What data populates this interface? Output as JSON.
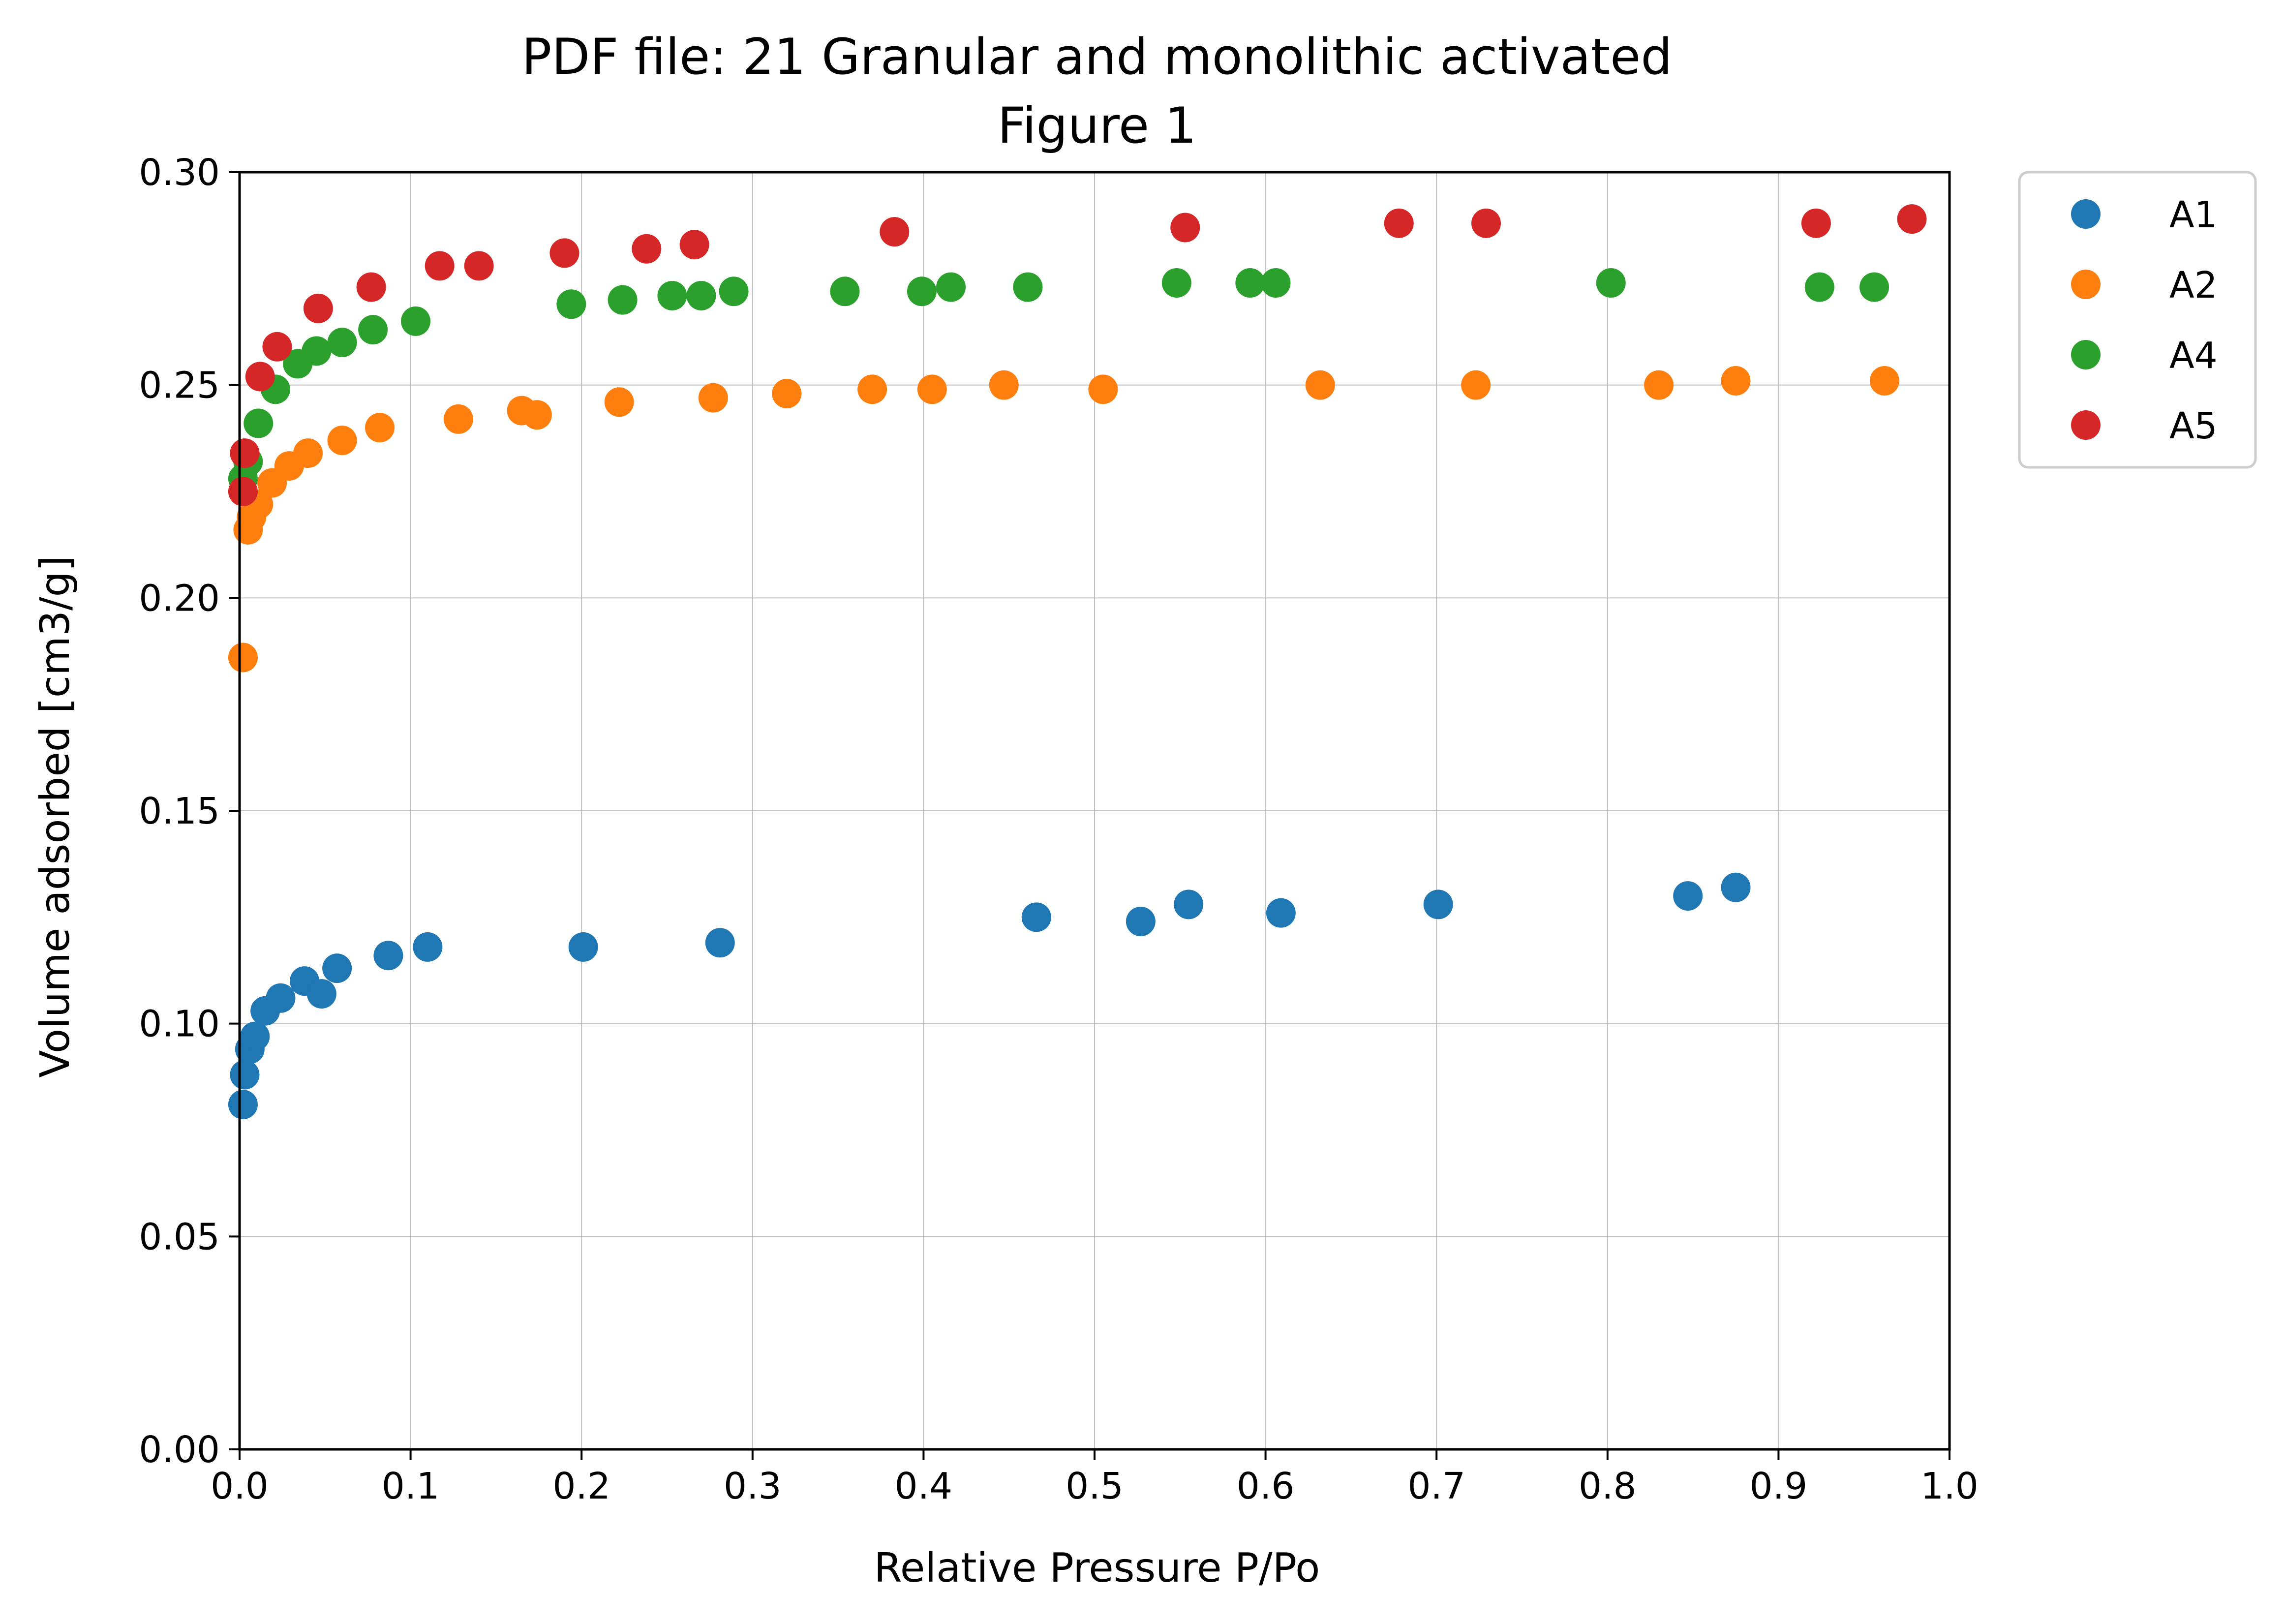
{
  "chart_data": {
    "type": "scatter",
    "title": "PDF file: 21 Granular and monolithic activated",
    "subtitle": "Figure 1",
    "xlabel": "Relative Pressure P/Po",
    "ylabel": "Volume adsorbed [cm3/g]",
    "xlim": [
      0,
      1.0
    ],
    "ylim": [
      0,
      0.3
    ],
    "x_ticks": [
      "0.0",
      "0.1",
      "0.2",
      "0.3",
      "0.4",
      "0.5",
      "0.6",
      "0.7",
      "0.8",
      "0.9",
      "1.0"
    ],
    "y_ticks": [
      "0.00",
      "0.05",
      "0.10",
      "0.15",
      "0.20",
      "0.25",
      "0.30"
    ],
    "grid": true,
    "legend_position": "outside-top-right",
    "series": [
      {
        "name": "A1",
        "color": "#1f77b4",
        "points": [
          [
            0.002,
            0.081
          ],
          [
            0.003,
            0.088
          ],
          [
            0.006,
            0.094
          ],
          [
            0.009,
            0.097
          ],
          [
            0.015,
            0.103
          ],
          [
            0.024,
            0.106
          ],
          [
            0.038,
            0.11
          ],
          [
            0.048,
            0.107
          ],
          [
            0.057,
            0.113
          ],
          [
            0.087,
            0.116
          ],
          [
            0.11,
            0.118
          ],
          [
            0.201,
            0.118
          ],
          [
            0.281,
            0.119
          ],
          [
            0.466,
            0.125
          ],
          [
            0.527,
            0.124
          ],
          [
            0.555,
            0.128
          ],
          [
            0.609,
            0.126
          ],
          [
            0.701,
            0.128
          ],
          [
            0.847,
            0.13
          ],
          [
            0.875,
            0.132
          ]
        ]
      },
      {
        "name": "A2",
        "color": "#ff7f0e",
        "points": [
          [
            0.002,
            0.186
          ],
          [
            0.005,
            0.216
          ],
          [
            0.007,
            0.219
          ],
          [
            0.011,
            0.222
          ],
          [
            0.019,
            0.227
          ],
          [
            0.029,
            0.231
          ],
          [
            0.04,
            0.234
          ],
          [
            0.06,
            0.237
          ],
          [
            0.082,
            0.24
          ],
          [
            0.128,
            0.242
          ],
          [
            0.165,
            0.244
          ],
          [
            0.174,
            0.243
          ],
          [
            0.222,
            0.246
          ],
          [
            0.277,
            0.247
          ],
          [
            0.32,
            0.248
          ],
          [
            0.37,
            0.249
          ],
          [
            0.405,
            0.249
          ],
          [
            0.447,
            0.25
          ],
          [
            0.505,
            0.249
          ],
          [
            0.632,
            0.25
          ],
          [
            0.723,
            0.25
          ],
          [
            0.83,
            0.25
          ],
          [
            0.875,
            0.251
          ],
          [
            0.962,
            0.251
          ]
        ]
      },
      {
        "name": "A4",
        "color": "#2ca02c",
        "points": [
          [
            0.002,
            0.228
          ],
          [
            0.005,
            0.232
          ],
          [
            0.011,
            0.241
          ],
          [
            0.021,
            0.249
          ],
          [
            0.034,
            0.255
          ],
          [
            0.045,
            0.258
          ],
          [
            0.06,
            0.26
          ],
          [
            0.078,
            0.263
          ],
          [
            0.103,
            0.265
          ],
          [
            0.194,
            0.269
          ],
          [
            0.224,
            0.27
          ],
          [
            0.253,
            0.271
          ],
          [
            0.27,
            0.271
          ],
          [
            0.289,
            0.272
          ],
          [
            0.354,
            0.272
          ],
          [
            0.399,
            0.272
          ],
          [
            0.416,
            0.273
          ],
          [
            0.461,
            0.273
          ],
          [
            0.548,
            0.274
          ],
          [
            0.591,
            0.274
          ],
          [
            0.606,
            0.274
          ],
          [
            0.802,
            0.274
          ],
          [
            0.924,
            0.273
          ],
          [
            0.956,
            0.273
          ]
        ]
      },
      {
        "name": "A5",
        "color": "#d62728",
        "points": [
          [
            0.002,
            0.225
          ],
          [
            0.003,
            0.234
          ],
          [
            0.012,
            0.252
          ],
          [
            0.022,
            0.259
          ],
          [
            0.046,
            0.268
          ],
          [
            0.077,
            0.273
          ],
          [
            0.117,
            0.278
          ],
          [
            0.14,
            0.278
          ],
          [
            0.19,
            0.281
          ],
          [
            0.238,
            0.282
          ],
          [
            0.266,
            0.283
          ],
          [
            0.383,
            0.286
          ],
          [
            0.553,
            0.287
          ],
          [
            0.678,
            0.288
          ],
          [
            0.729,
            0.288
          ],
          [
            0.922,
            0.288
          ],
          [
            0.978,
            0.289
          ]
        ]
      }
    ]
  }
}
